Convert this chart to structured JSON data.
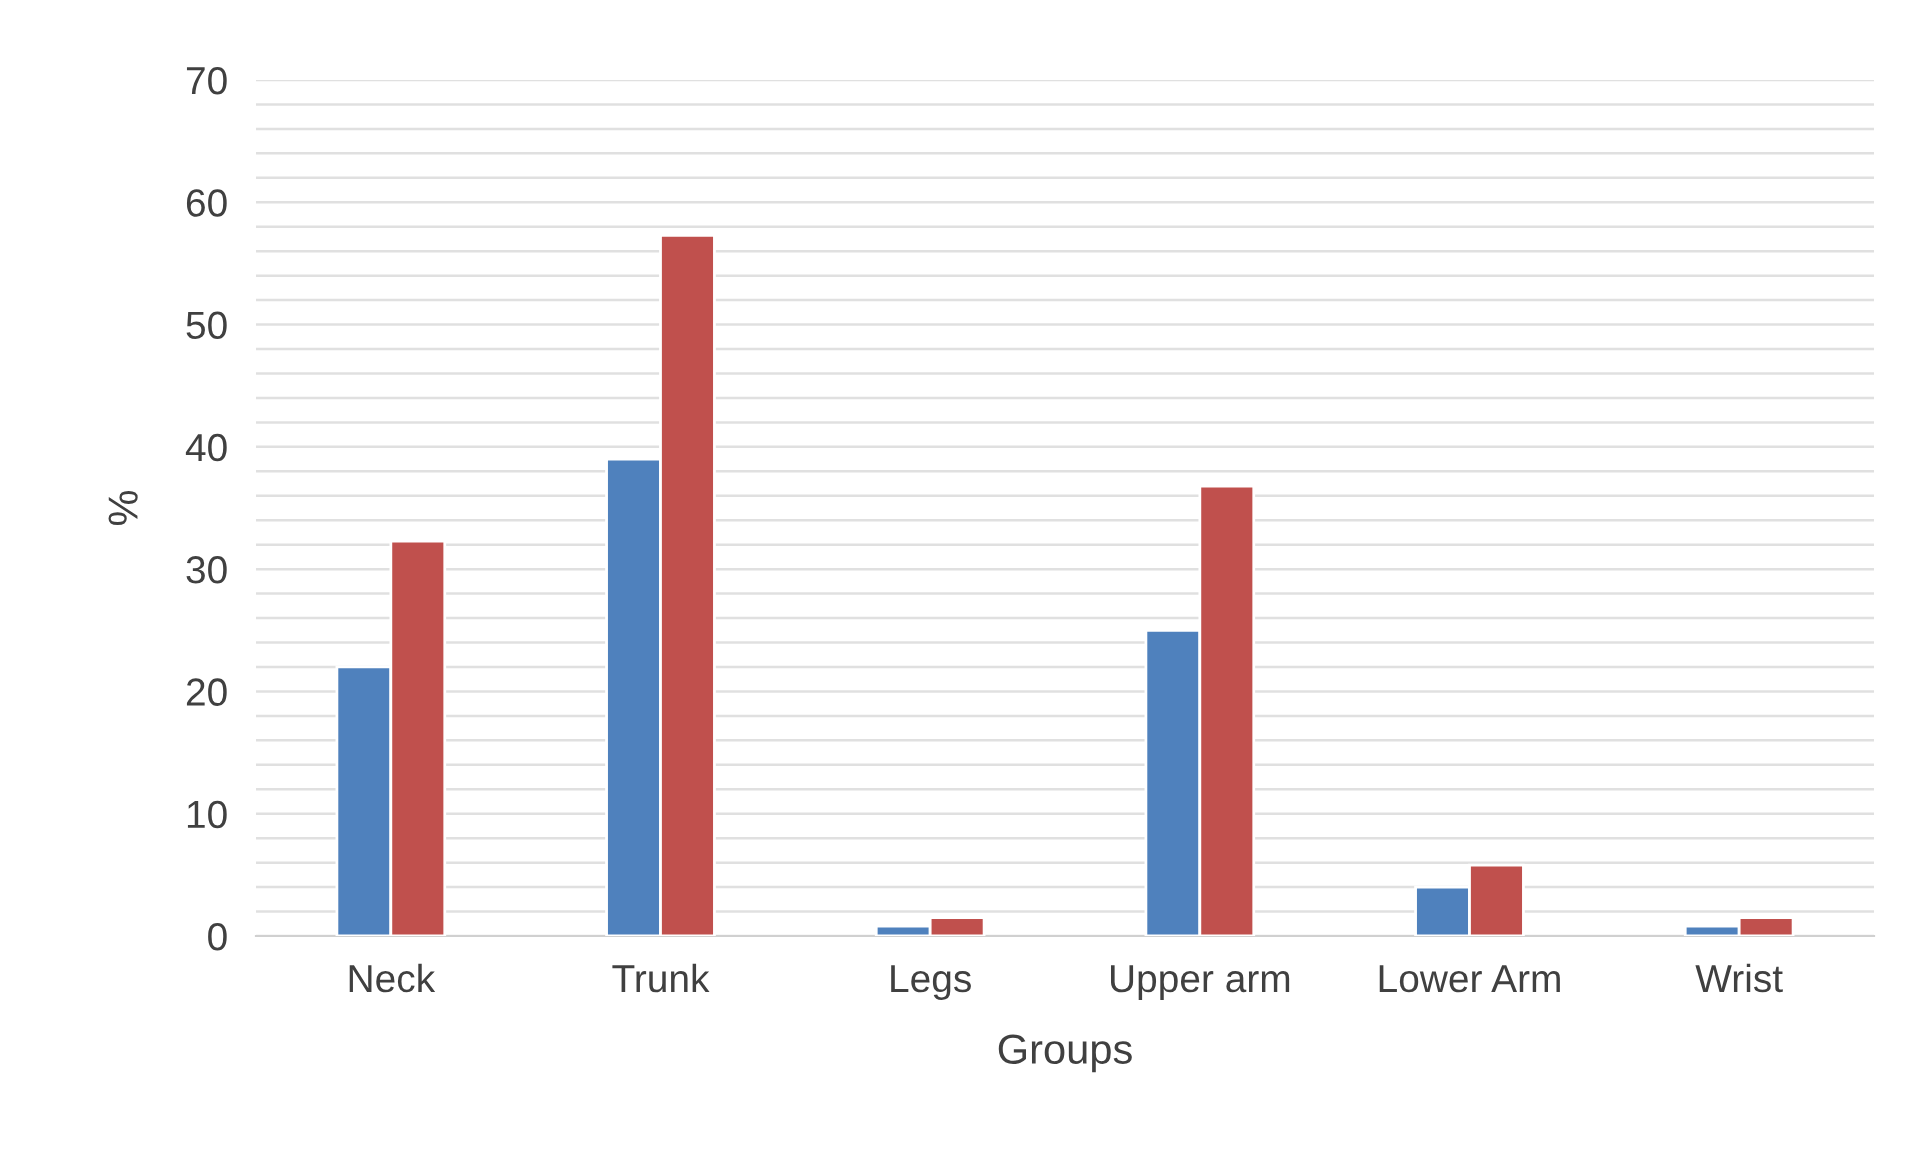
{
  "chart_data": {
    "type": "bar",
    "xlabel": "Groups",
    "ylabel": "%",
    "categories": [
      "Neck",
      "Trunk",
      "Legs",
      "Upper arm",
      "Lower Arm",
      "Wrist"
    ],
    "series": [
      {
        "color": "#4f81bd",
        "values": [
          22,
          39,
          0.8,
          25,
          4,
          0.8
        ]
      },
      {
        "color": "#c0504d",
        "values": [
          32.3,
          57.3,
          1.5,
          36.8,
          5.8,
          1.5
        ]
      }
    ],
    "ylim": [
      0,
      70
    ],
    "yticks": [
      0,
      {
        "value": 2,
        "label": null
      },
      {
        "value": 4,
        "label": null
      },
      {
        "value": 6,
        "label": null
      },
      {
        "value": 8,
        "label": null
      },
      10,
      {
        "value": 12,
        "label": null
      },
      {
        "value": 14,
        "label": null
      },
      {
        "value": 16,
        "label": null
      },
      {
        "value": 18,
        "label": null
      },
      20,
      {
        "value": 22,
        "label": null
      },
      {
        "value": 24,
        "label": null
      },
      {
        "value": 26,
        "label": null
      },
      {
        "value": 28,
        "label": null
      },
      30,
      {
        "value": 32,
        "label": null
      },
      {
        "value": 34,
        "label": null
      },
      {
        "value": 36,
        "label": null
      },
      {
        "value": 38,
        "label": null
      },
      40,
      {
        "value": 42,
        "label": null
      },
      {
        "value": 44,
        "label": null
      },
      {
        "value": 46,
        "label": null
      },
      {
        "value": 48,
        "label": null
      },
      50,
      {
        "value": 52,
        "label": null
      },
      {
        "value": 54,
        "label": null
      },
      {
        "value": 56,
        "label": null
      },
      {
        "value": 58,
        "label": null
      },
      60,
      {
        "value": 62,
        "label": null
      },
      {
        "value": 64,
        "label": null
      },
      {
        "value": 66,
        "label": null
      },
      {
        "value": 68,
        "label": null
      },
      70
    ],
    "grid": "y"
  }
}
